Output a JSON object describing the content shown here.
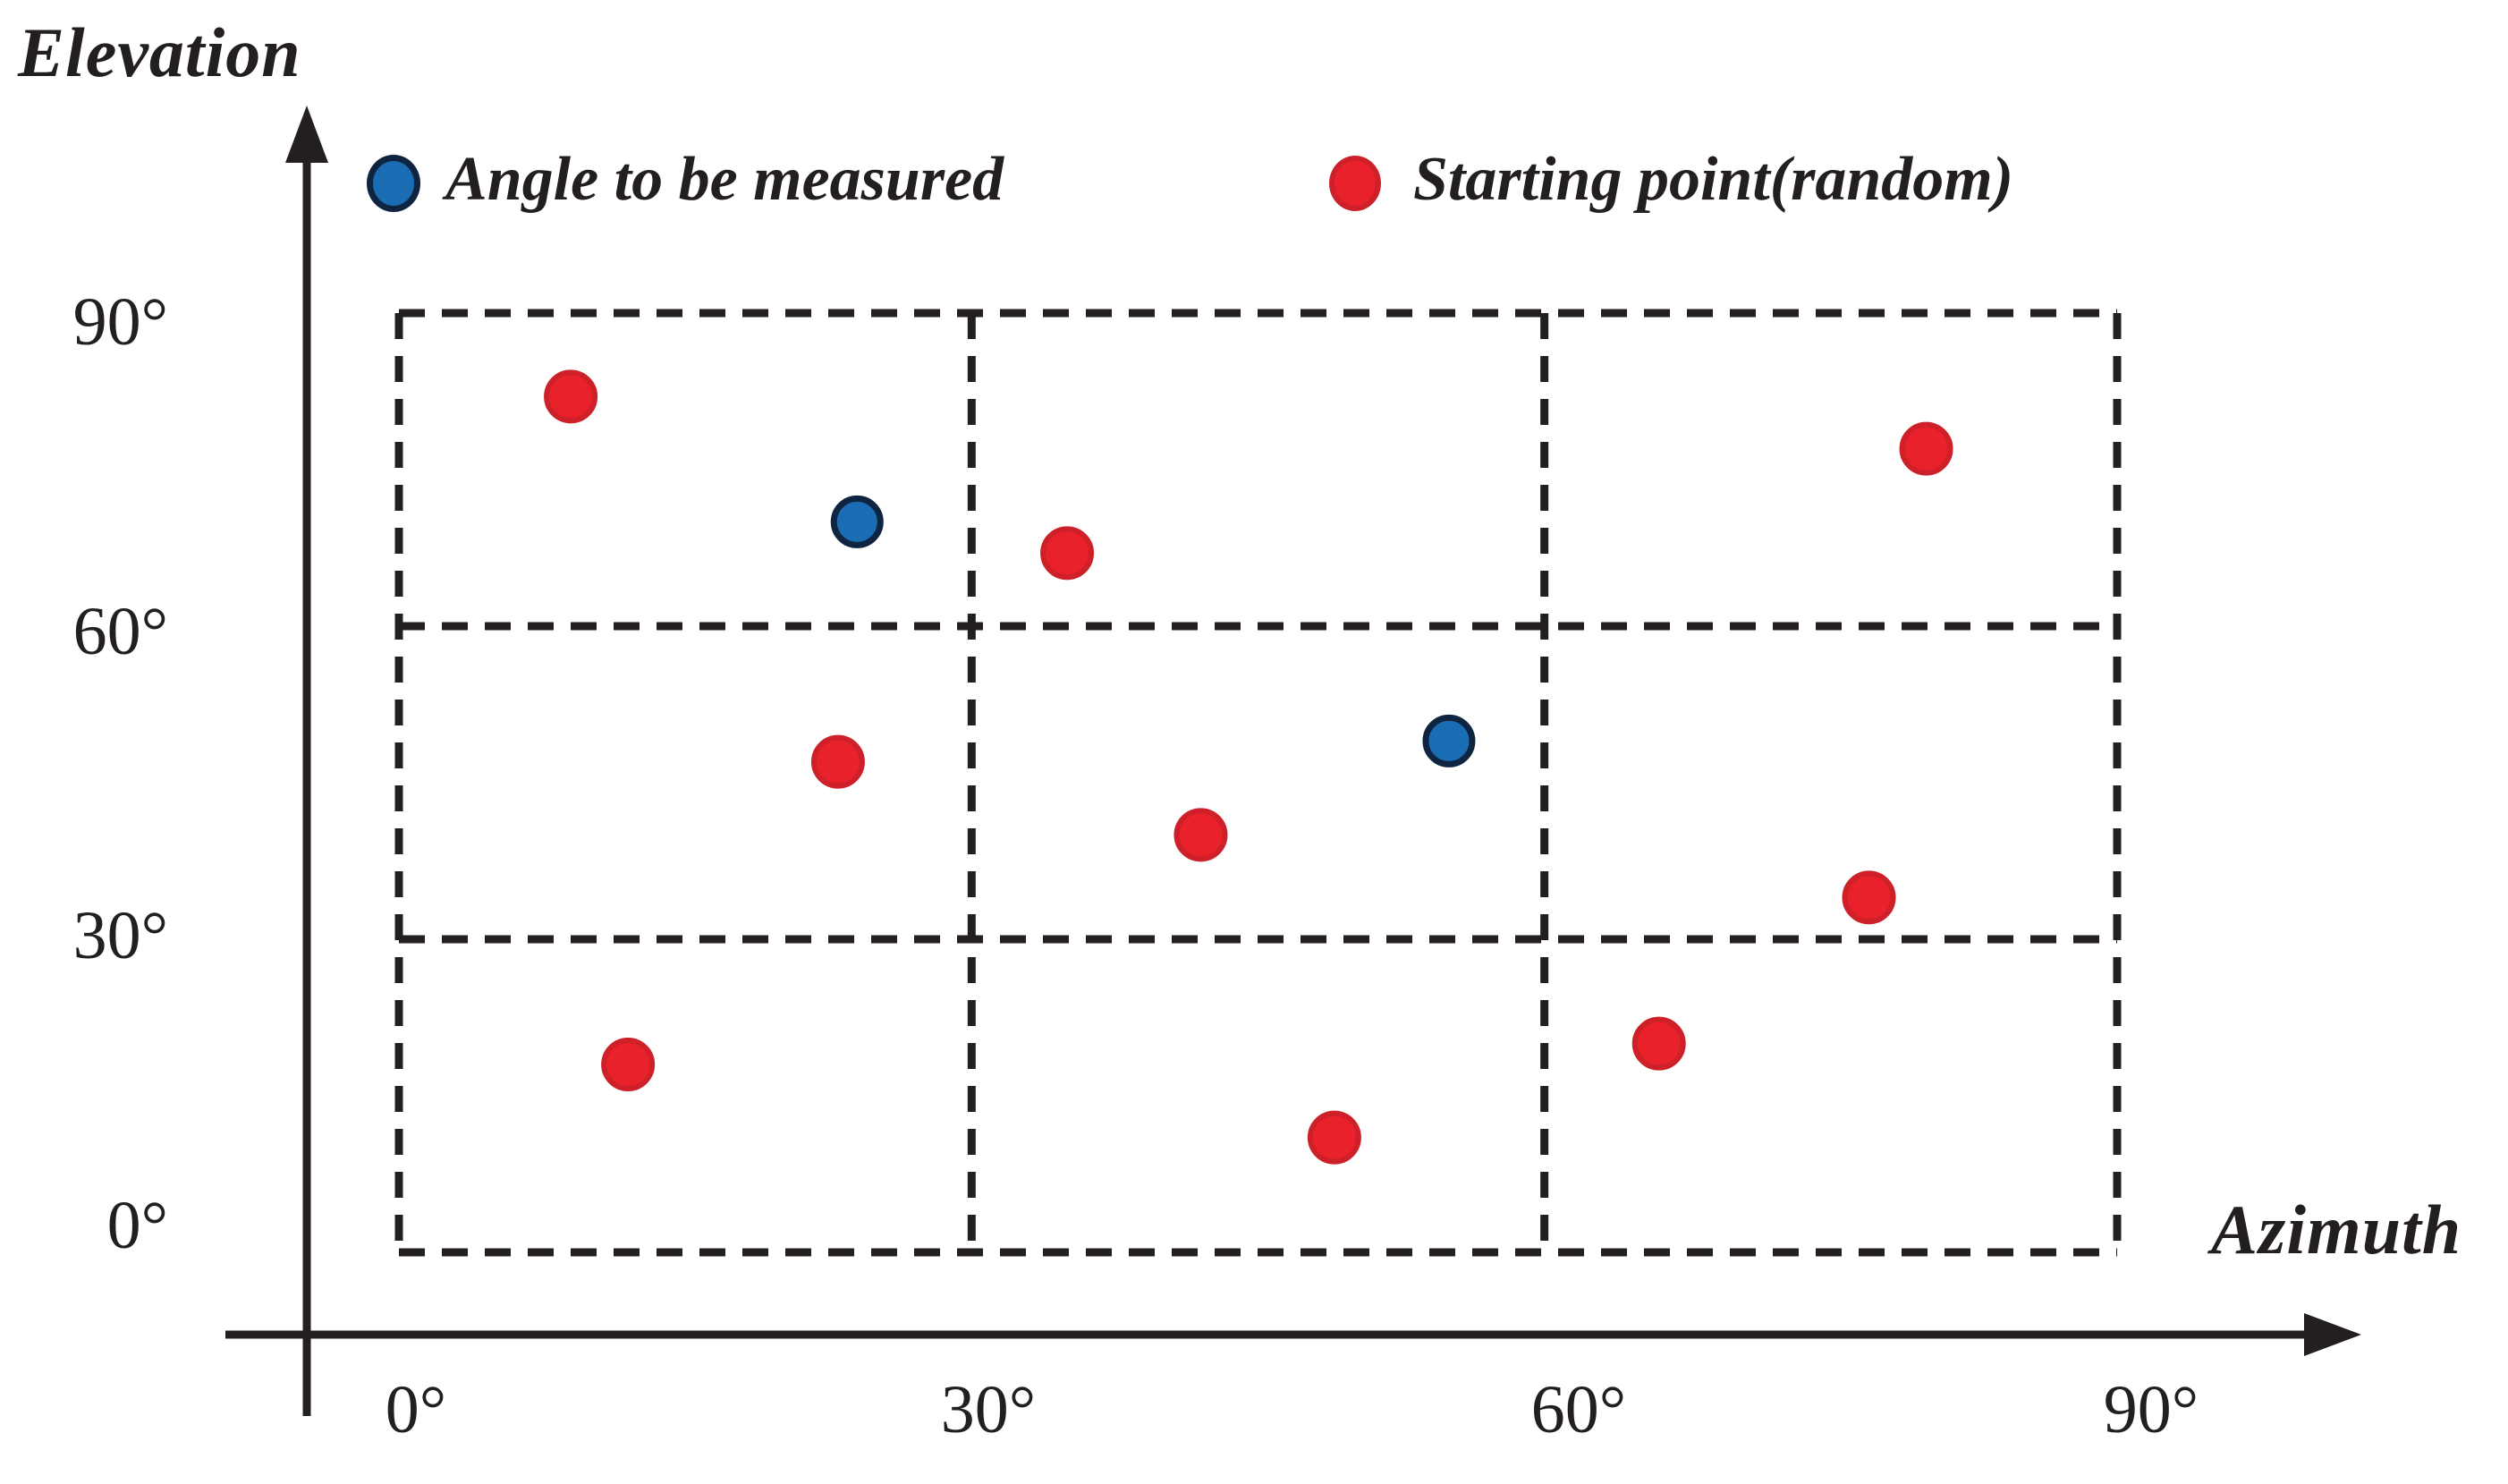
{
  "axis": {
    "y_title": "Elevation",
    "x_title": "Azimuth",
    "y_ticks": [
      "90°",
      "60°",
      "30°",
      "0°"
    ],
    "x_ticks": [
      "0°",
      "30°",
      "60°",
      "90°"
    ]
  },
  "legend": [
    {
      "label": "Angle to be measured",
      "marker": "blue-circle"
    },
    {
      "label": "Starting point(random)",
      "marker": "red-circle"
    }
  ],
  "colors": {
    "blue_fill": "#1B6DB3",
    "blue_edge": "#0E2440",
    "red_fill": "#E8212A",
    "red_edge": "#CE2029",
    "line": "#231F20",
    "background": "#ffffff"
  },
  "chart_data": {
    "type": "scatter",
    "title": "",
    "xlabel": "Azimuth",
    "ylabel": "Elevation",
    "xlim": [
      0,
      90
    ],
    "ylim": [
      0,
      90
    ],
    "x_tick_values": [
      0,
      30,
      60,
      90
    ],
    "y_tick_values": [
      0,
      30,
      60,
      90
    ],
    "grid": "dashed 3x3 cells every 30 degrees",
    "legend_position": "top",
    "series": [
      {
        "name": "Angle to be measured",
        "marker": "circle",
        "fill": "#1B6DB3",
        "edge": "#0E2440",
        "points": [
          {
            "azimuth": 24,
            "elevation": 70
          },
          {
            "azimuth": 55,
            "elevation": 49
          }
        ]
      },
      {
        "name": "Starting point(random)",
        "marker": "circle",
        "fill": "#E8212A",
        "edge": "#CE2029",
        "points": [
          {
            "azimuth": 9,
            "elevation": 82
          },
          {
            "azimuth": 35,
            "elevation": 67
          },
          {
            "azimuth": 80,
            "elevation": 77
          },
          {
            "azimuth": 23,
            "elevation": 47
          },
          {
            "azimuth": 42,
            "elevation": 40
          },
          {
            "azimuth": 77,
            "elevation": 34
          },
          {
            "azimuth": 12,
            "elevation": 18
          },
          {
            "azimuth": 49,
            "elevation": 11
          },
          {
            "azimuth": 66,
            "elevation": 20
          }
        ]
      }
    ]
  }
}
